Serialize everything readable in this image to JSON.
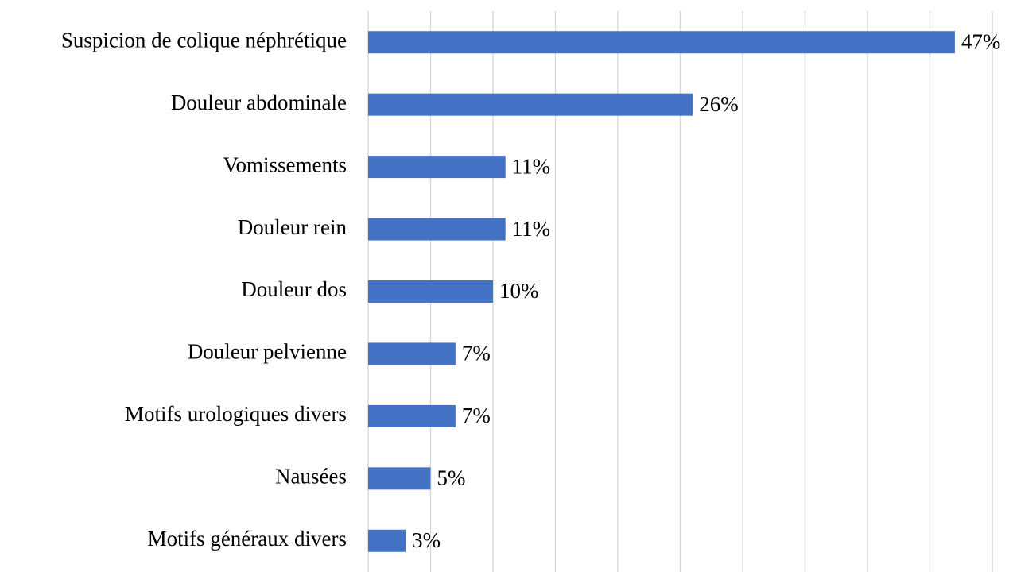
{
  "chart_data": {
    "type": "barh",
    "categories": [
      "Suspicion de colique néphrétique",
      "Douleur abdominale",
      "Vomissements",
      "Douleur rein",
      "Douleur dos",
      "Douleur pelvienne",
      "Motifs urologiques divers",
      "Nausées",
      "Motifs généraux divers"
    ],
    "values": [
      47,
      26,
      11,
      11,
      10,
      7,
      7,
      5,
      3
    ],
    "value_labels": [
      "47%",
      "26%",
      "11%",
      "11%",
      "10%",
      "7%",
      "7%",
      "5%",
      "3%"
    ],
    "color": "#4472c4",
    "xlim": [
      0,
      50
    ],
    "xticks": [
      0,
      5,
      10,
      15,
      20,
      25,
      30,
      35,
      40,
      45,
      50
    ],
    "grid": true
  }
}
